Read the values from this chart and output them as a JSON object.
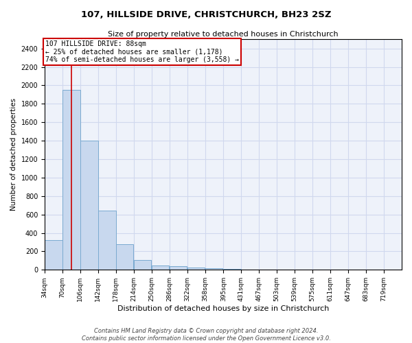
{
  "title": "107, HILLSIDE DRIVE, CHRISTCHURCH, BH23 2SZ",
  "subtitle": "Size of property relative to detached houses in Christchurch",
  "xlabel": "Distribution of detached houses by size in Christchurch",
  "ylabel": "Number of detached properties",
  "bar_color": "#c8d8ee",
  "bar_edge_color": "#7aaad0",
  "bins": [
    34,
    70,
    106,
    142,
    178,
    214,
    250,
    286,
    322,
    358,
    395,
    431,
    467,
    503,
    539,
    575,
    611,
    647,
    683,
    719,
    755
  ],
  "bar_heights": [
    320,
    1950,
    1400,
    640,
    280,
    105,
    45,
    40,
    25,
    20,
    10,
    5,
    3,
    2,
    2,
    1,
    1,
    1,
    0,
    0
  ],
  "property_size": 88,
  "property_line_color": "#cc0000",
  "annotation_line1": "107 HILLSIDE DRIVE: 88sqm",
  "annotation_line2": "← 25% of detached houses are smaller (1,178)",
  "annotation_line3": "74% of semi-detached houses are larger (3,558) →",
  "annotation_box_color": "#ffffff",
  "annotation_box_edge_color": "#cc0000",
  "ylim": [
    0,
    2500
  ],
  "yticks": [
    0,
    200,
    400,
    600,
    800,
    1000,
    1200,
    1400,
    1600,
    1800,
    2000,
    2200,
    2400
  ],
  "grid_color": "#d0d8ee",
  "background_color": "#eef2fa",
  "footer_line1": "Contains HM Land Registry data © Crown copyright and database right 2024.",
  "footer_line2": "Contains public sector information licensed under the Open Government Licence v3.0."
}
